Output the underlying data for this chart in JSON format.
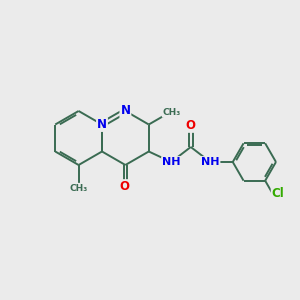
{
  "background_color": "#ebebeb",
  "bond_color": "#3a6b52",
  "N_color": "#0000ee",
  "O_color": "#ee0000",
  "Cl_color": "#33aa00",
  "bond_width": 1.4,
  "font_size": 8.5,
  "fig_width": 3.0,
  "fig_height": 3.0,
  "dpi": 100,
  "xlim": [
    0,
    10
  ],
  "ylim": [
    0,
    10
  ]
}
